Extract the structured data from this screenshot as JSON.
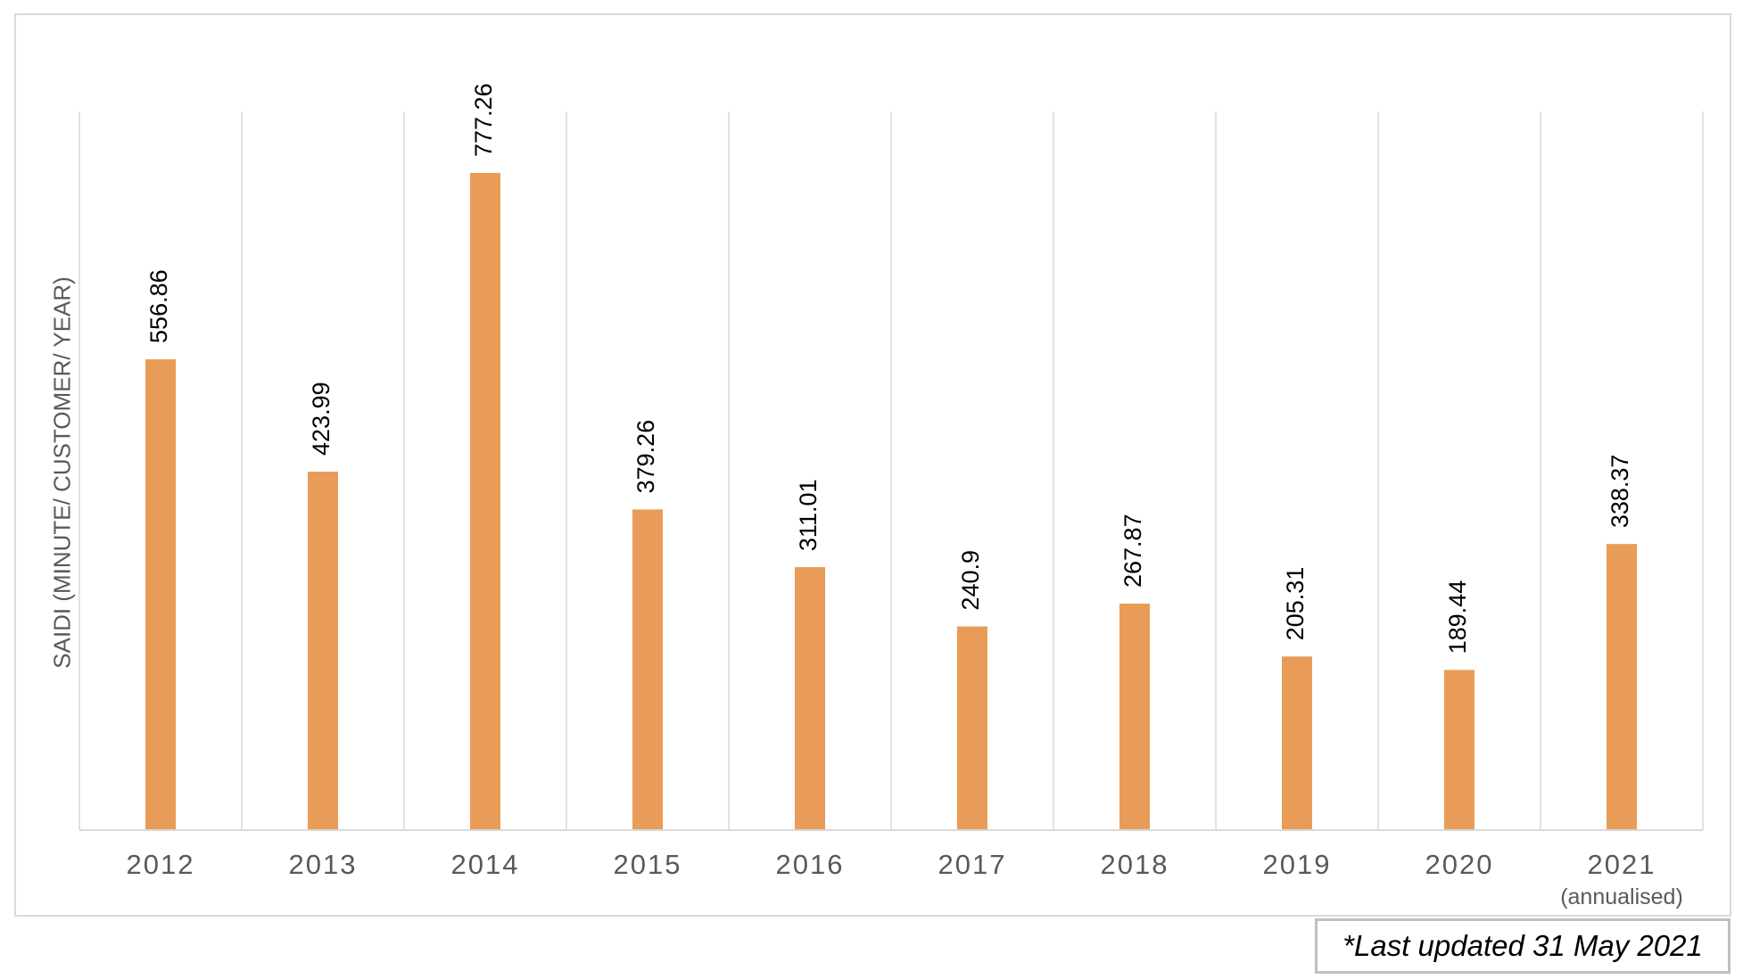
{
  "chart_data": {
    "type": "bar",
    "title": "",
    "xlabel": "",
    "ylabel": "SAIDI (MINUTE/ CUSTOMER/ YEAR)",
    "ylim": [
      0,
      850
    ],
    "grid": {
      "vertical": true,
      "horizontal": false
    },
    "bar_color": "#E99C57",
    "categories": [
      {
        "label": "2012",
        "sublabel": ""
      },
      {
        "label": "2013",
        "sublabel": ""
      },
      {
        "label": "2014",
        "sublabel": ""
      },
      {
        "label": "2015",
        "sublabel": ""
      },
      {
        "label": "2016",
        "sublabel": ""
      },
      {
        "label": "2017",
        "sublabel": ""
      },
      {
        "label": "2018",
        "sublabel": ""
      },
      {
        "label": "2019",
        "sublabel": ""
      },
      {
        "label": "2020",
        "sublabel": ""
      },
      {
        "label": "2021",
        "sublabel": "(annualised)"
      }
    ],
    "values": [
      556.86,
      423.99,
      777.26,
      379.26,
      311.01,
      240.9,
      267.87,
      205.31,
      189.44,
      338.37
    ],
    "data_labels": [
      "556.86",
      "423.99",
      "777.26",
      "379.26",
      "311.01",
      "240.9",
      "267.87",
      "205.31",
      "189.44",
      "338.37"
    ]
  },
  "note": {
    "text": "*Last updated 31 May 2021"
  }
}
